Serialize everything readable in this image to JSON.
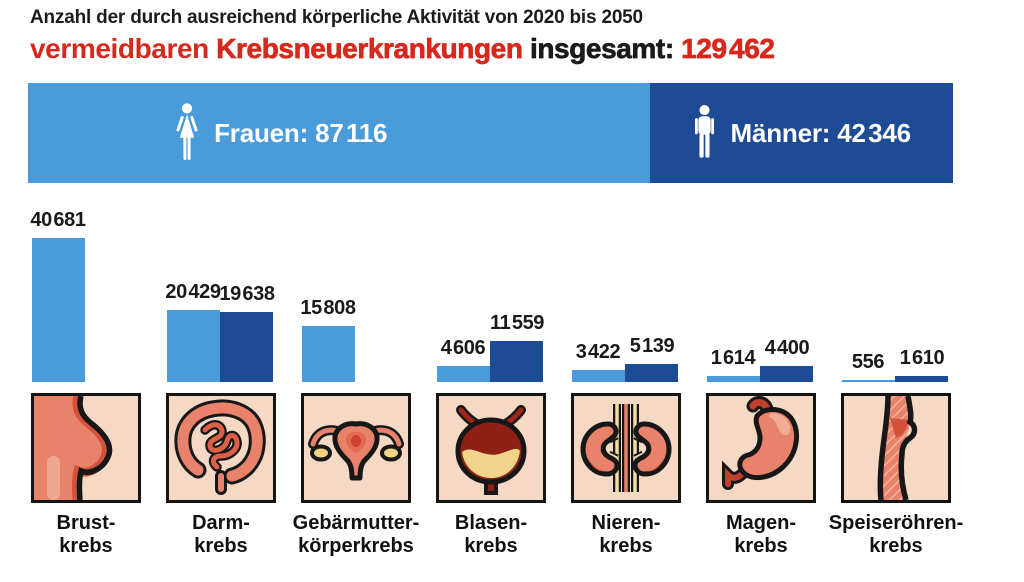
{
  "title": {
    "line1": "Anzahl der durch ausreichend körperliche Aktivität von 2020 bis 2050",
    "highlight1": "vermeidbaren",
    "highlight2": "Krebsneuerkrankungen",
    "suffix": "insgesamt:",
    "total": "129 462"
  },
  "banner": {
    "women_label": "Frauen:",
    "women_value_display": "87 116",
    "women_value": 87116,
    "men_label": "Männer:",
    "men_value_display": "42 346",
    "men_value": 42346
  },
  "colors": {
    "light_blue": "#4A9BDA",
    "dark_blue": "#1E4B96",
    "red": "#D5291E",
    "box_bg": "#F6D9C5"
  },
  "chart_data": {
    "type": "bar",
    "title": "Anzahl der durch ausreichend körperliche Aktivität von 2020 bis 2050 vermeidbaren Krebsneuerkrankungen insgesamt: 129 462",
    "total": 129462,
    "totals_by_sex": {
      "Frauen": 87116,
      "Männer": 42346
    },
    "categories": [
      "Brustkrebs",
      "Darmkrebs",
      "Gebärmutterkörperkrebs",
      "Blasenkrebs",
      "Nierenkrebs",
      "Magenkrebs",
      "Speiseröhrenkrebs"
    ],
    "series": [
      {
        "name": "Frauen",
        "color": "#4A9BDA",
        "values": [
          40681,
          20429,
          15808,
          4606,
          3422,
          1614,
          556
        ]
      },
      {
        "name": "Männer",
        "color": "#1E4B96",
        "values": [
          null,
          19638,
          null,
          11559,
          5139,
          4400,
          1610
        ]
      }
    ],
    "ylim": [
      0,
      40681
    ],
    "grid": false,
    "legend_position": "top-banner",
    "value_labels": "above-bars"
  },
  "columns": [
    {
      "icon": "breast-icon",
      "label_lines": [
        "Brust-",
        "krebs"
      ],
      "women": 40681,
      "women_display": "40 681",
      "men": null,
      "men_display": null
    },
    {
      "icon": "intestine-icon",
      "label_lines": [
        "Darm-",
        "krebs"
      ],
      "women": 20429,
      "women_display": "20 429",
      "men": 19638,
      "men_display": "19 638"
    },
    {
      "icon": "uterus-icon",
      "label_lines": [
        "Gebärmutter-",
        "körperkrebs"
      ],
      "women": 15808,
      "women_display": "15 808",
      "men": null,
      "men_display": null
    },
    {
      "icon": "bladder-icon",
      "label_lines": [
        "Blasen-",
        "krebs"
      ],
      "women": 4606,
      "women_display": "4 606",
      "men": 11559,
      "men_display": "11 559"
    },
    {
      "icon": "kidney-icon",
      "label_lines": [
        "Nieren-",
        "krebs"
      ],
      "women": 3422,
      "women_display": "3 422",
      "men": 5139,
      "men_display": "5 139"
    },
    {
      "icon": "stomach-icon",
      "label_lines": [
        "Magen-",
        "krebs"
      ],
      "women": 1614,
      "women_display": "1 614",
      "men": 4400,
      "men_display": "4 400"
    },
    {
      "icon": "esophagus-icon",
      "label_lines": [
        "Speiseröhren-",
        "krebs"
      ],
      "women": 556,
      "women_display": "556",
      "men": 1610,
      "men_display": "1 610"
    }
  ]
}
